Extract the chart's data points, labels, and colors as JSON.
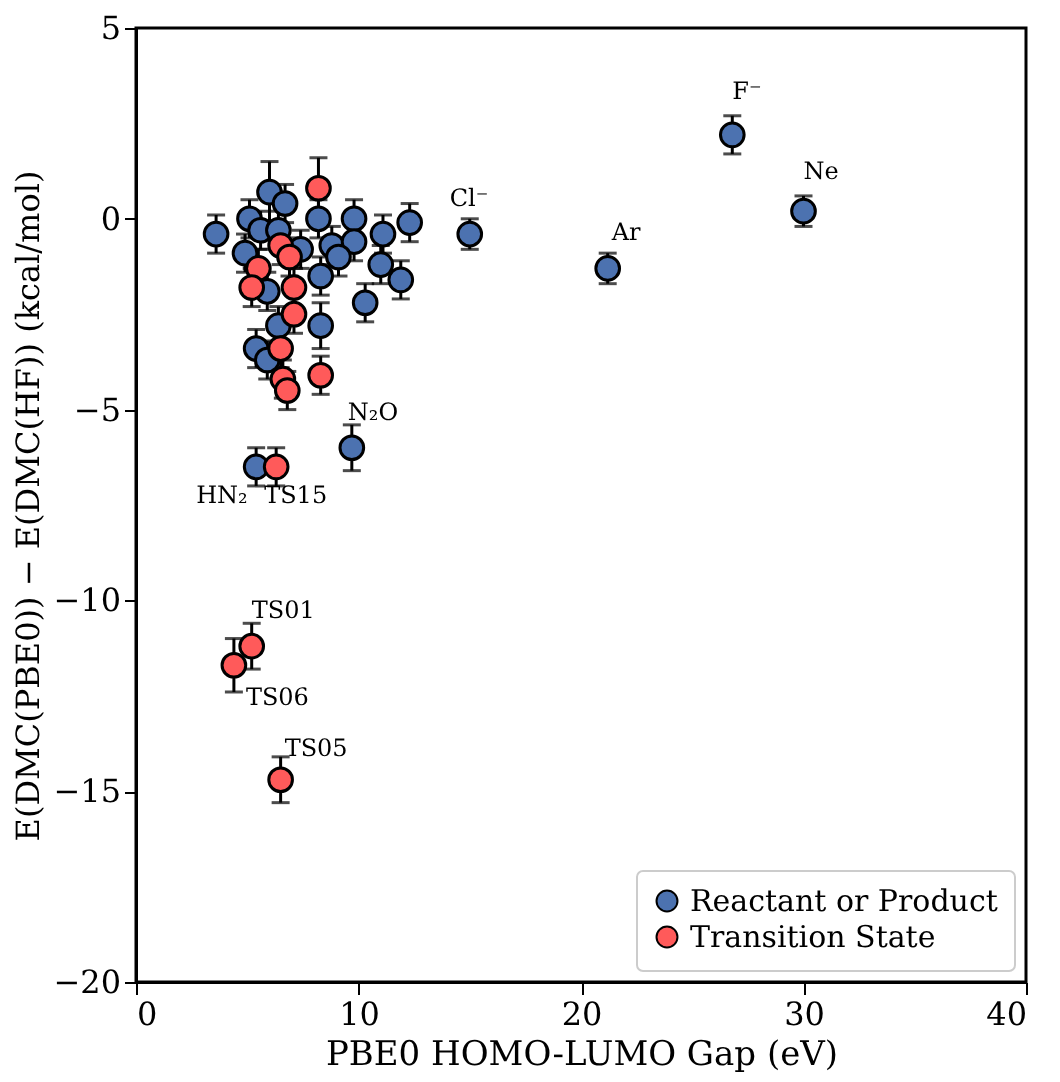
{
  "chart_data": {
    "type": "scatter",
    "xlabel": "PBE0 HOMO-LUMO Gap (eV)",
    "ylabel": "E(DMC(PBE0)) − E(DMC(HF)) (kcal/mol)",
    "xlim": [
      0,
      40
    ],
    "ylim": [
      -20,
      5
    ],
    "xticks": [
      0,
      10,
      20,
      30,
      40
    ],
    "yticks": [
      -20,
      -15,
      -10,
      -5,
      0,
      5
    ],
    "grid": false,
    "legend": "bottom right",
    "marker": "circle",
    "series": [
      {
        "name": "Reactant or Product",
        "color": "#4c72b0",
        "x": [
          3.6,
          5.1,
          6.0,
          6.7,
          5.6,
          4.9,
          6.4,
          7.4,
          8.2,
          8.8,
          9.8,
          9.8,
          9.1,
          11.1,
          12.3,
          11.0,
          11.9,
          10.3,
          8.3,
          5.9,
          6.4,
          8.3,
          5.4,
          5.9,
          9.7,
          5.4,
          15.0,
          21.2,
          26.8,
          30.0
        ],
        "values": [
          -0.4,
          0.0,
          0.7,
          0.4,
          -0.3,
          -0.9,
          -0.3,
          -0.8,
          0.0,
          -0.7,
          0.0,
          -0.6,
          -1.0,
          -0.4,
          -0.1,
          -1.2,
          -1.6,
          -2.2,
          -1.5,
          -1.9,
          -2.8,
          -2.8,
          -3.4,
          -3.7,
          -6.0,
          -6.5,
          -0.4,
          -1.3,
          2.2,
          0.2
        ],
        "errors": [
          0.5,
          0.5,
          0.8,
          0.5,
          0.5,
          0.5,
          0.5,
          0.5,
          0.5,
          0.5,
          0.5,
          0.5,
          0.5,
          0.5,
          0.5,
          0.5,
          0.5,
          0.5,
          0.5,
          0.5,
          0.5,
          0.6,
          0.5,
          0.5,
          0.6,
          0.5,
          0.4,
          0.4,
          0.5,
          0.4
        ]
      },
      {
        "name": "Transition State",
        "color": "#ff5a5a",
        "x": [
          8.2,
          6.5,
          6.9,
          5.5,
          5.2,
          7.1,
          7.1,
          6.5,
          6.6,
          6.8,
          8.3,
          6.3,
          5.2,
          4.4,
          6.5
        ],
        "values": [
          0.8,
          -0.7,
          -1.0,
          -1.3,
          -1.8,
          -1.8,
          -2.5,
          -3.4,
          -4.2,
          -4.5,
          -4.1,
          -6.5,
          -11.2,
          -11.7,
          -14.7
        ],
        "errors": [
          0.8,
          0.5,
          0.5,
          0.5,
          0.5,
          0.5,
          0.5,
          0.5,
          0.5,
          0.5,
          0.5,
          0.5,
          0.6,
          0.7,
          0.6
        ]
      }
    ],
    "annotations": [
      {
        "text": "F⁻",
        "x": 26.8,
        "y": 2.2
      },
      {
        "text": "Ne",
        "x": 30.0,
        "y": 0.2
      },
      {
        "text": "Cl⁻",
        "x": 15.0,
        "y": -0.4
      },
      {
        "text": "Ar",
        "x": 21.2,
        "y": -1.3
      },
      {
        "text": "N₂O",
        "x": 9.7,
        "y": -6.0
      },
      {
        "text": "HN₂",
        "x": 5.4,
        "y": -6.5
      },
      {
        "text": "TS15",
        "x": 6.3,
        "y": -6.5
      },
      {
        "text": "TS01",
        "x": 5.2,
        "y": -11.2
      },
      {
        "text": "TS06",
        "x": 4.4,
        "y": -11.7
      },
      {
        "text": "TS05",
        "x": 6.5,
        "y": -14.7
      }
    ]
  }
}
